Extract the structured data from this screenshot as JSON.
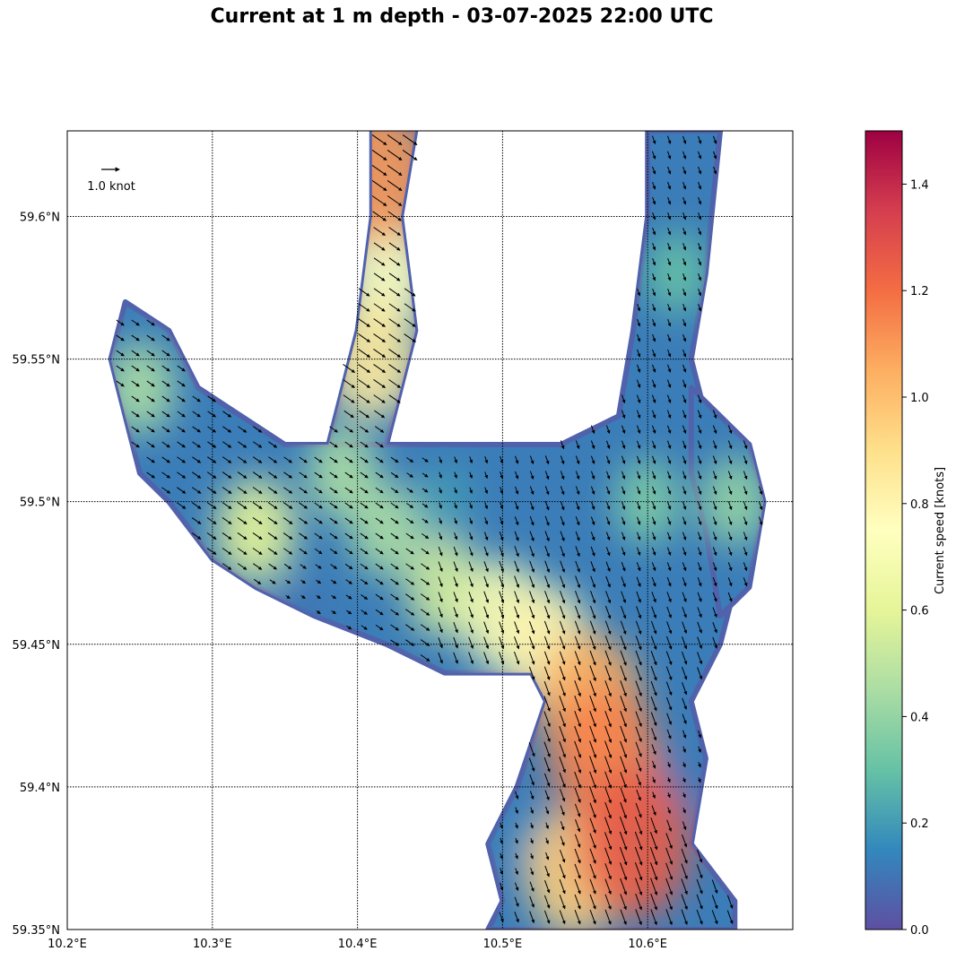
{
  "title": "Current at 1 m depth - 03-07-2025 22:00 UTC",
  "chart_data": {
    "type": "heatmap",
    "title": "Current at 1 m depth - 03-07-2025 22:00 UTC",
    "x_axis": {
      "range": [
        10.2,
        10.7
      ],
      "ticks": [
        10.2,
        10.3,
        10.4,
        10.5,
        10.6
      ],
      "tick_labels": [
        "10.2°E",
        "10.3°E",
        "10.4°E",
        "10.5°E",
        "10.6°E"
      ]
    },
    "y_axis": {
      "range": [
        59.35,
        59.63
      ],
      "ticks": [
        59.35,
        59.4,
        59.45,
        59.5,
        59.55,
        59.6
      ],
      "tick_labels": [
        "59.35°N",
        "59.4°N",
        "59.45°N",
        "59.5°N",
        "59.55°N",
        "59.6°N"
      ]
    },
    "grid": true,
    "grid_style": "dotted",
    "quiver_key": {
      "label": "1.0 knot",
      "value": 1.0
    },
    "colorbar": {
      "label": "Current speed [knots]",
      "range": [
        0.0,
        1.5
      ],
      "ticks": [
        0.0,
        0.2,
        0.4,
        0.6,
        0.8,
        1.0,
        1.2,
        1.4
      ],
      "tick_labels": [
        "0.0",
        "0.2",
        "0.4",
        "0.6",
        "0.8",
        "1.0",
        "1.2",
        "1.4"
      ],
      "colormap": "Spectral_r",
      "colors": [
        "#5e4fa2",
        "#3288bd",
        "#66c2a5",
        "#abdda4",
        "#e6f598",
        "#ffffbf",
        "#fee08b",
        "#fdae61",
        "#f46d43",
        "#d53e4f",
        "#9e0142"
      ]
    },
    "water_regions": [
      {
        "name": "main channel",
        "lon_lat": [
          [
            10.49,
            59.35
          ],
          [
            10.5,
            59.36
          ],
          [
            10.49,
            59.38
          ],
          [
            10.51,
            59.4
          ],
          [
            10.53,
            59.43
          ],
          [
            10.52,
            59.44
          ],
          [
            10.46,
            59.44
          ],
          [
            10.42,
            59.45
          ],
          [
            10.37,
            59.46
          ],
          [
            10.33,
            59.47
          ],
          [
            10.3,
            59.48
          ],
          [
            10.27,
            59.5
          ],
          [
            10.25,
            59.51
          ],
          [
            10.24,
            59.53
          ],
          [
            10.23,
            59.55
          ],
          [
            10.24,
            59.57
          ],
          [
            10.27,
            59.56
          ],
          [
            10.29,
            59.54
          ],
          [
            10.32,
            59.53
          ],
          [
            10.35,
            59.52
          ],
          [
            10.38,
            59.52
          ],
          [
            10.41,
            59.52
          ],
          [
            10.44,
            59.52
          ],
          [
            10.47,
            59.52
          ],
          [
            10.5,
            59.52
          ],
          [
            10.54,
            59.52
          ],
          [
            10.58,
            59.53
          ],
          [
            10.59,
            59.56
          ],
          [
            10.6,
            59.6
          ],
          [
            10.6,
            59.63
          ],
          [
            10.65,
            59.63
          ],
          [
            10.64,
            59.58
          ],
          [
            10.63,
            59.55
          ],
          [
            10.64,
            59.53
          ],
          [
            10.67,
            59.52
          ],
          [
            10.67,
            59.49
          ],
          [
            10.66,
            59.47
          ],
          [
            10.65,
            59.45
          ],
          [
            10.63,
            59.43
          ],
          [
            10.64,
            59.41
          ],
          [
            10.63,
            59.38
          ],
          [
            10.66,
            59.36
          ],
          [
            10.66,
            59.35
          ]
        ]
      },
      {
        "name": "northern fjord arm",
        "lon_lat": [
          [
            10.38,
            59.52
          ],
          [
            10.4,
            59.56
          ],
          [
            10.41,
            59.6
          ],
          [
            10.41,
            59.63
          ],
          [
            10.44,
            59.63
          ],
          [
            10.43,
            59.6
          ],
          [
            10.44,
            59.56
          ],
          [
            10.42,
            59.52
          ]
        ]
      },
      {
        "name": "eastern lobe",
        "lon_lat": [
          [
            10.63,
            59.54
          ],
          [
            10.67,
            59.52
          ],
          [
            10.68,
            59.5
          ],
          [
            10.67,
            59.47
          ],
          [
            10.65,
            59.46
          ],
          [
            10.64,
            59.49
          ],
          [
            10.63,
            59.51
          ]
        ]
      }
    ],
    "speed_samples": [
      {
        "lon": 10.59,
        "lat": 59.38,
        "speed": 1.25
      },
      {
        "lon": 10.57,
        "lat": 59.41,
        "speed": 1.15
      },
      {
        "lon": 10.56,
        "lat": 59.43,
        "speed": 1.05
      },
      {
        "lon": 10.55,
        "lat": 59.37,
        "speed": 0.95
      },
      {
        "lon": 10.53,
        "lat": 59.45,
        "speed": 0.8
      },
      {
        "lon": 10.5,
        "lat": 59.46,
        "speed": 0.7
      },
      {
        "lon": 10.46,
        "lat": 59.47,
        "speed": 0.55
      },
      {
        "lon": 10.42,
        "lat": 59.49,
        "speed": 0.45
      },
      {
        "lon": 10.39,
        "lat": 59.51,
        "speed": 0.45
      },
      {
        "lon": 10.41,
        "lat": 59.55,
        "speed": 0.85
      },
      {
        "lon": 10.42,
        "lat": 59.58,
        "speed": 0.75
      },
      {
        "lon": 10.415,
        "lat": 59.615,
        "speed": 1.1
      },
      {
        "lon": 10.33,
        "lat": 59.49,
        "speed": 0.6
      },
      {
        "lon": 10.25,
        "lat": 59.54,
        "speed": 0.45
      },
      {
        "lon": 10.6,
        "lat": 59.5,
        "speed": 0.35
      },
      {
        "lon": 10.62,
        "lat": 59.58,
        "speed": 0.3
      },
      {
        "lon": 10.66,
        "lat": 59.5,
        "speed": 0.4
      },
      {
        "lon": 10.62,
        "lat": 59.4,
        "speed": 0.1
      },
      {
        "lon": 10.52,
        "lat": 59.38,
        "speed": 0.15
      },
      {
        "lon": 10.36,
        "lat": 59.46,
        "speed": 0.1
      },
      {
        "lon": 10.46,
        "lat": 59.5,
        "speed": 0.2
      }
    ],
    "flow_direction": "south-southeast, out of the northern arm and along the main channel"
  }
}
